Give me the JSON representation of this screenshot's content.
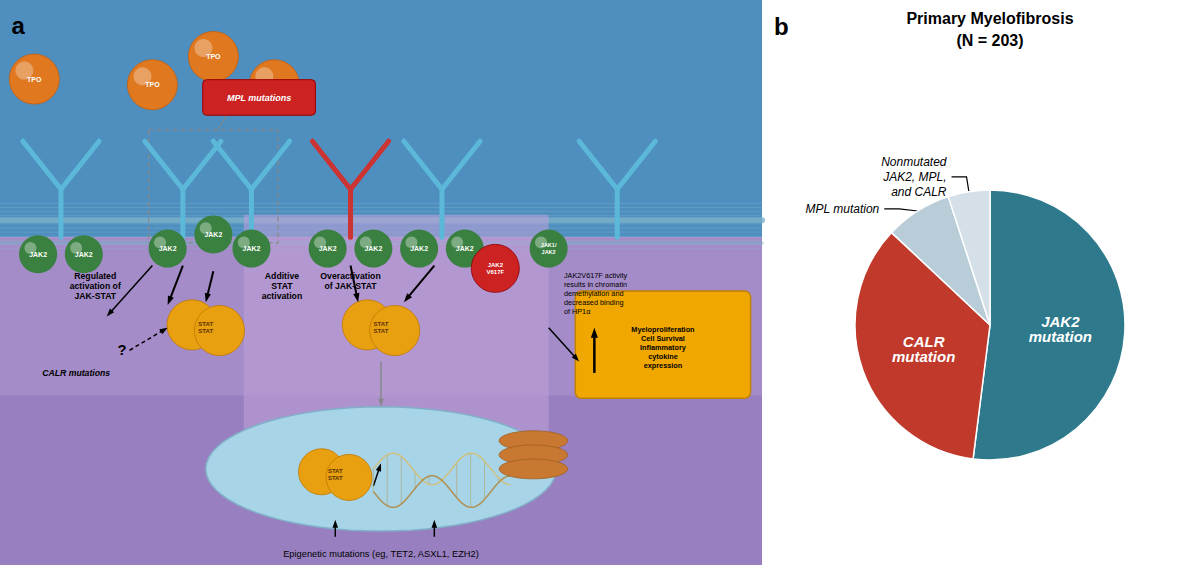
{
  "chart_data": {
    "type": "pie",
    "title": "Primary Myelofibrosis",
    "subtitle": "(N = 203)",
    "panel_labels": [
      "a",
      "b"
    ],
    "categories": [
      "JAK2\nmutation",
      "CALR\nmutation",
      "MPL mutation",
      "Nonmutated\nJAK2, MPL,\nand CALR"
    ],
    "values": [
      52,
      35,
      8,
      5
    ],
    "colors": [
      "#2e7a8c",
      "#c0392b",
      "#b8cdd8",
      "#d5dfe8"
    ],
    "annotations": [
      "TPO",
      "JAK2",
      "STAT\nSTAT",
      "MPL mutations",
      "JAK2\nV617F",
      "JAK1/\nJAK2",
      "Myeloproliferation\nCell Survival\nInflammatory\ncytokine\nexpression",
      "Regulated\nactivation of\nJAK-STAT",
      "Additive\nSTAT\nactivation",
      "Overactivation\nof JAK-STAT",
      "JAK2V617F activity\nresults in chromatin\ndemethylation and\ndecreased binding\nof HP1α",
      "CALR mutations",
      "?",
      "Epigenetic mutations (eg, TET2, ASXL1, EZH2)"
    ]
  }
}
